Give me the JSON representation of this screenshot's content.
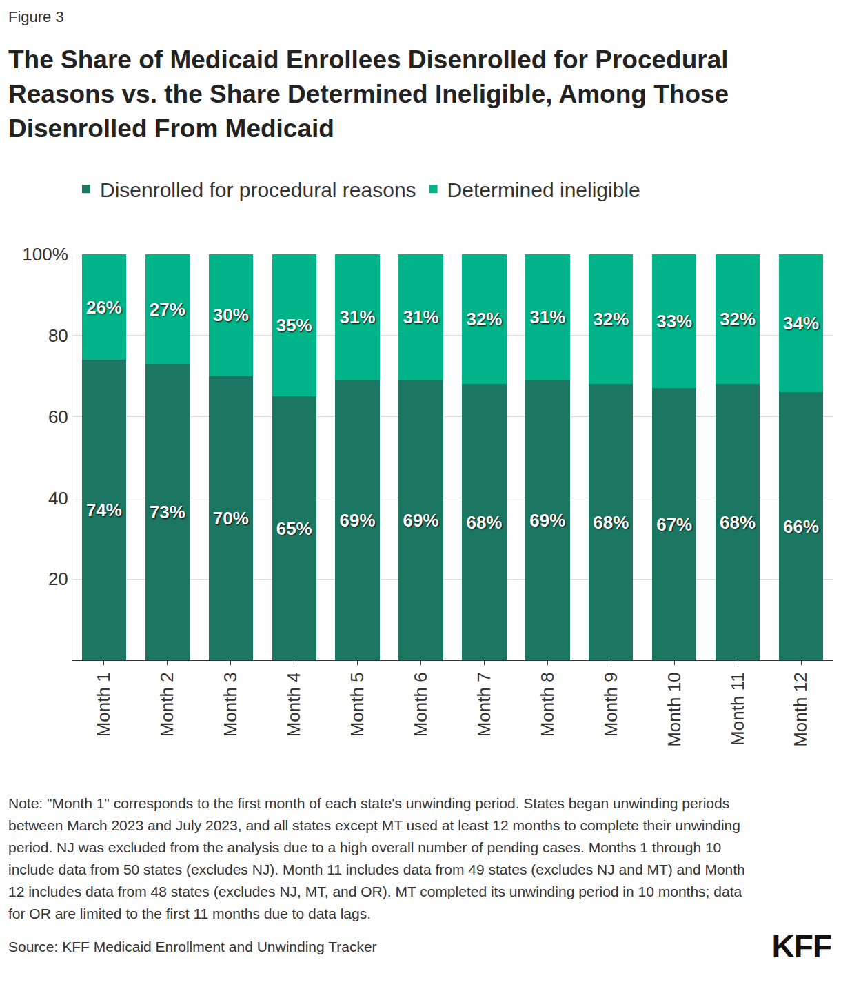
{
  "header": {
    "label": "Figure 3"
  },
  "chart_data": {
    "type": "bar",
    "title": "The Share of Medicaid Enrollees Disenrolled for Procedural Reasons vs. the Share Determined Ineligible, Among Those Disenrolled From Medicaid",
    "categories": [
      "Month 1",
      "Month 2",
      "Month 3",
      "Month 4",
      "Month 5",
      "Month 6",
      "Month 7",
      "Month 8",
      "Month 9",
      "Month 10",
      "Month 11",
      "Month 12"
    ],
    "series": [
      {
        "name": "Disenrolled for procedural reasons",
        "color": "#1c7762",
        "values": [
          74,
          73,
          70,
          65,
          69,
          69,
          68,
          69,
          68,
          67,
          68,
          66
        ],
        "value_labels": [
          "74%",
          "73%",
          "70%",
          "65%",
          "69%",
          "69%",
          "68%",
          "69%",
          "68%",
          "67%",
          "68%",
          "66%"
        ]
      },
      {
        "name": "Determined ineligible",
        "color": "#00b388",
        "values": [
          26,
          27,
          30,
          35,
          31,
          31,
          32,
          31,
          32,
          33,
          32,
          34
        ],
        "value_labels": [
          "26%",
          "27%",
          "30%",
          "35%",
          "31%",
          "31%",
          "32%",
          "31%",
          "32%",
          "33%",
          "32%",
          "34%"
        ]
      }
    ],
    "stacked": true,
    "data_labels": true,
    "ylim": [
      0,
      100
    ],
    "yticks": [
      20,
      40,
      60,
      80,
      {
        "value": 100,
        "label": "100%"
      }
    ],
    "grid": true,
    "legend": "top-left"
  },
  "footer": {
    "note": "Note: \"Month 1\" corresponds to the first month of each state's unwinding period. States began unwinding periods between March 2023 and July 2023, and all states except MT used at least 12 months to complete their unwinding period. NJ was excluded from the analysis due to a high overall number of pending cases. Months 1 through 10 include data from 50 states (excludes NJ). Month 11 includes data from 49 states (excludes NJ and MT) and Month 12 includes data from 48 states (excludes NJ, MT, and OR). MT completed its unwinding period in 10 months; data for OR are limited to the first 11 months due to data lags.",
    "source": "Source: KFF Medicaid Enrollment and Unwinding Tracker",
    "logo": "KFF"
  }
}
